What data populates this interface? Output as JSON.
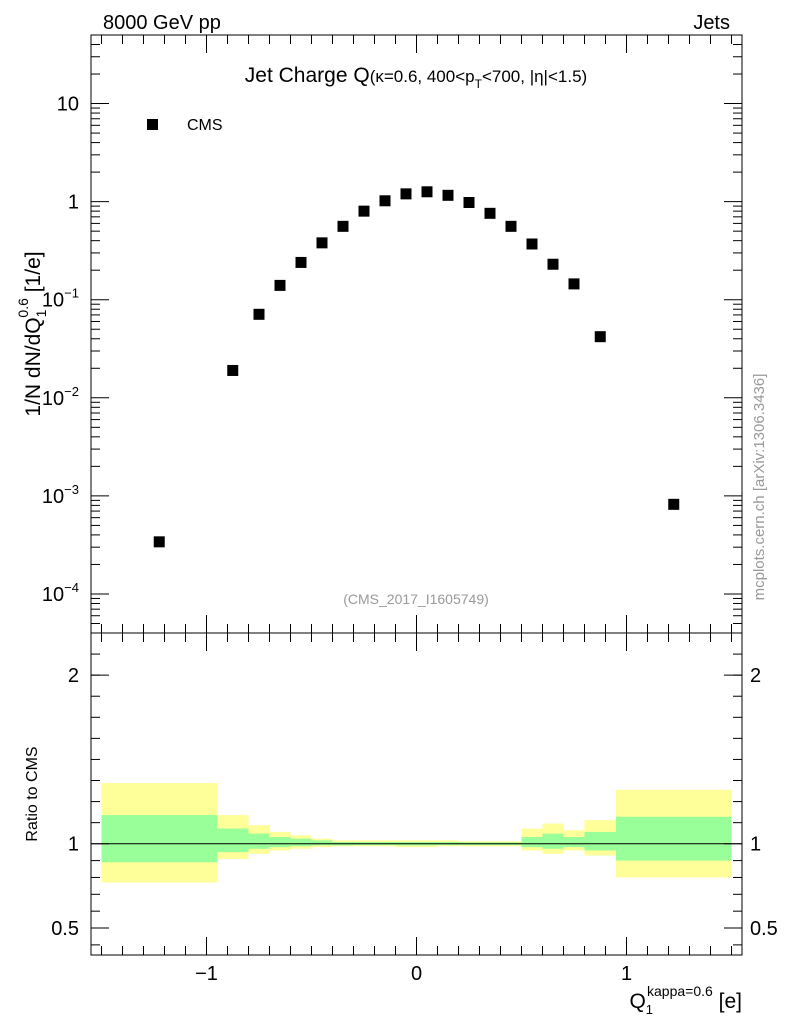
{
  "header": {
    "energy": "8000 GeV pp",
    "category": "Jets",
    "side_credit": "mcplots.cern.ch [arXiv:1306.3436]",
    "analysis_id": "(CMS_2017_I1605749)"
  },
  "chart_data": [
    {
      "type": "scatter",
      "panel": "main",
      "title_main": "Jet Charge Q",
      "title_detail_a": "(κ=0.6, 400<p",
      "title_detail_sub": "T",
      "title_detail_b": "<700, |η|<1.5)",
      "ylabel_a": "1/N dN/dQ",
      "ylabel_sub": "1",
      "ylabel_sup": "0.6",
      "ylabel_b": " [1/e]",
      "yscale": "log",
      "ylim": [
        4e-05,
        50
      ],
      "xlim": [
        -1.55,
        1.55
      ],
      "legend": {
        "position": "top-left",
        "entries": [
          "CMS"
        ]
      },
      "y_tick_labels": [
        {
          "base": "10",
          "exp": "−4",
          "value": 0.0001
        },
        {
          "base": "10",
          "exp": "−3",
          "value": 0.001
        },
        {
          "base": "10",
          "exp": "−2",
          "value": 0.01
        },
        {
          "base": "10",
          "exp": "−1",
          "value": 0.1
        },
        {
          "base": "1",
          "exp": "",
          "value": 1
        },
        {
          "base": "10",
          "exp": "",
          "value": 10
        }
      ],
      "series": [
        {
          "name": "CMS",
          "marker": "square",
          "color": "#000000",
          "points": [
            {
              "x": -1.225,
              "y": 0.00034
            },
            {
              "x": -0.875,
              "y": 0.019
            },
            {
              "x": -0.75,
              "y": 0.071
            },
            {
              "x": -0.65,
              "y": 0.14
            },
            {
              "x": -0.55,
              "y": 0.24
            },
            {
              "x": -0.45,
              "y": 0.38
            },
            {
              "x": -0.35,
              "y": 0.56
            },
            {
              "x": -0.25,
              "y": 0.8
            },
            {
              "x": -0.15,
              "y": 1.02
            },
            {
              "x": -0.05,
              "y": 1.2
            },
            {
              "x": 0.05,
              "y": 1.26
            },
            {
              "x": 0.15,
              "y": 1.16
            },
            {
              "x": 0.25,
              "y": 0.98
            },
            {
              "x": 0.35,
              "y": 0.76
            },
            {
              "x": 0.45,
              "y": 0.56
            },
            {
              "x": 0.55,
              "y": 0.37
            },
            {
              "x": 0.65,
              "y": 0.23
            },
            {
              "x": 0.75,
              "y": 0.145
            },
            {
              "x": 0.875,
              "y": 0.042
            },
            {
              "x": 1.225,
              "y": 0.00082
            }
          ]
        }
      ]
    },
    {
      "type": "area",
      "panel": "ratio",
      "ylabel": "Ratio to CMS",
      "ylim": [
        0.34,
        2.25
      ],
      "xlim": [
        -1.55,
        1.55
      ],
      "y_tick_labels": [
        "0.5",
        "1",
        "2"
      ],
      "y_tick_values": [
        0.5,
        1,
        2
      ],
      "x_tick_labels": [
        "−1",
        "0",
        "1"
      ],
      "x_tick_values": [
        -1,
        0,
        1
      ],
      "xlabel_a": "Q",
      "xlabel_sub": "1",
      "xlabel_sup": "kappa=0.6",
      "xlabel_b": " [e]",
      "reference_line": 1,
      "bands": [
        {
          "x0": -1.5,
          "x1": -0.95,
          "outer": [
            0.77,
            1.36
          ],
          "inner": [
            0.89,
            1.17
          ]
        },
        {
          "x0": -0.95,
          "x1": -0.8,
          "outer": [
            0.91,
            1.17
          ],
          "inner": [
            0.95,
            1.09
          ]
        },
        {
          "x0": -0.8,
          "x1": -0.7,
          "outer": [
            0.94,
            1.11
          ],
          "inner": [
            0.97,
            1.06
          ]
        },
        {
          "x0": -0.7,
          "x1": -0.6,
          "outer": [
            0.96,
            1.07
          ],
          "inner": [
            0.98,
            1.04
          ]
        },
        {
          "x0": -0.6,
          "x1": -0.5,
          "outer": [
            0.97,
            1.05
          ],
          "inner": [
            0.985,
            1.03
          ]
        },
        {
          "x0": -0.5,
          "x1": -0.4,
          "outer": [
            0.98,
            1.03
          ],
          "inner": [
            0.99,
            1.02
          ]
        },
        {
          "x0": -0.4,
          "x1": -0.3,
          "outer": [
            0.985,
            1.02
          ],
          "inner": [
            0.99,
            1.01
          ]
        },
        {
          "x0": -0.3,
          "x1": -0.2,
          "outer": [
            0.985,
            1.02
          ],
          "inner": [
            0.992,
            1.01
          ]
        },
        {
          "x0": -0.2,
          "x1": -0.1,
          "outer": [
            0.985,
            1.02
          ],
          "inner": [
            0.992,
            1.01
          ]
        },
        {
          "x0": -0.1,
          "x1": 0.0,
          "outer": [
            0.98,
            1.02
          ],
          "inner": [
            0.99,
            1.01
          ]
        },
        {
          "x0": 0.0,
          "x1": 0.1,
          "outer": [
            0.98,
            1.02
          ],
          "inner": [
            0.99,
            1.01
          ]
        },
        {
          "x0": 0.1,
          "x1": 0.2,
          "outer": [
            0.985,
            1.02
          ],
          "inner": [
            0.992,
            1.01
          ]
        },
        {
          "x0": 0.2,
          "x1": 0.3,
          "outer": [
            0.985,
            1.015
          ],
          "inner": [
            0.992,
            1.008
          ]
        },
        {
          "x0": 0.3,
          "x1": 0.4,
          "outer": [
            0.985,
            1.015
          ],
          "inner": [
            0.992,
            1.008
          ]
        },
        {
          "x0": 0.4,
          "x1": 0.5,
          "outer": [
            0.985,
            1.015
          ],
          "inner": [
            0.992,
            1.008
          ]
        },
        {
          "x0": 0.5,
          "x1": 0.6,
          "outer": [
            0.96,
            1.09
          ],
          "inner": [
            0.98,
            1.04
          ]
        },
        {
          "x0": 0.6,
          "x1": 0.7,
          "outer": [
            0.94,
            1.12
          ],
          "inner": [
            0.97,
            1.06
          ]
        },
        {
          "x0": 0.7,
          "x1": 0.8,
          "outer": [
            0.96,
            1.08
          ],
          "inner": [
            0.98,
            1.04
          ]
        },
        {
          "x0": 0.8,
          "x1": 0.95,
          "outer": [
            0.93,
            1.14
          ],
          "inner": [
            0.96,
            1.07
          ]
        },
        {
          "x0": 0.95,
          "x1": 1.5,
          "outer": [
            0.8,
            1.32
          ],
          "inner": [
            0.9,
            1.16
          ]
        }
      ],
      "band_colors": {
        "outer": "#ffff99",
        "inner": "#99ff99"
      }
    }
  ]
}
